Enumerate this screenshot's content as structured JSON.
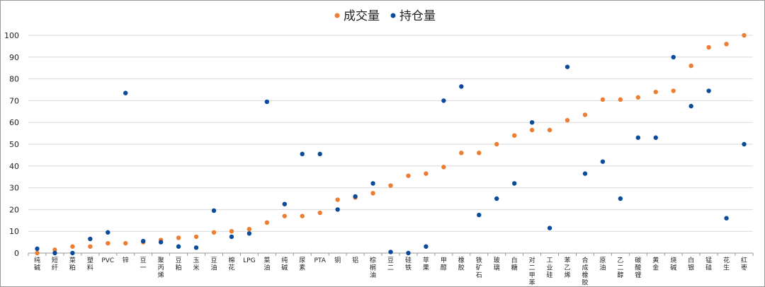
{
  "colors": {
    "trading": "#ED7D31",
    "position": "#0B4B9B",
    "grid": "#D9D9D9",
    "axis": "#9A9A9A"
  },
  "chart_data": {
    "type": "scatter",
    "title": "",
    "xlabel": "",
    "ylabel": "",
    "ylim": [
      0,
      100
    ],
    "yticks": [
      0,
      10,
      20,
      30,
      40,
      50,
      60,
      70,
      80,
      90,
      100
    ],
    "grid": true,
    "legend": "top-center",
    "categories": [
      "纯碱",
      "短纤",
      "菜粕",
      "塑料",
      "PVC",
      "锌",
      "豆一",
      "聚丙烯",
      "豆粕",
      "玉米",
      "豆油",
      "棉花",
      "LPG",
      "菜油",
      "纯碱",
      "尿素",
      "PTA",
      "铜",
      "铝",
      "棕榈油",
      "豆二",
      "硅铁",
      "苹果",
      "甲醇",
      "橡胶",
      "铁矿石",
      "玻璃",
      "白糖",
      "对二甲苯",
      "工业硅",
      "苯乙烯",
      "合成橡胶",
      "原油",
      "乙二醇",
      "碳酸锂",
      "黄金",
      "烧碱",
      "白银",
      "锰硅",
      "花生",
      "红枣"
    ],
    "series": [
      {
        "name": "成交量",
        "values": [
          0,
          1.5,
          3,
          3,
          4.5,
          4.5,
          5,
          6,
          7,
          7.5,
          9.5,
          10,
          11,
          14,
          17,
          17,
          18.5,
          24.5,
          25.5,
          27.5,
          31,
          35.5,
          36.5,
          39.5,
          46,
          46,
          50,
          54,
          56.5,
          56.5,
          61,
          63.5,
          70.5,
          70.5,
          71.5,
          74,
          74.5,
          86,
          94.5,
          96,
          100
        ]
      },
      {
        "name": "持仓量",
        "values": [
          2,
          0,
          0,
          6.5,
          9.5,
          73.5,
          5.5,
          5,
          3,
          2.5,
          19.5,
          7.5,
          9,
          69.5,
          22.5,
          45.5,
          45.5,
          20,
          26,
          32,
          0.5,
          0,
          3,
          70,
          76.5,
          17.5,
          25,
          32,
          60,
          11.5,
          85.5,
          36.5,
          42,
          25,
          53,
          53,
          90,
          67.5,
          74.5,
          16,
          50
        ]
      }
    ]
  }
}
